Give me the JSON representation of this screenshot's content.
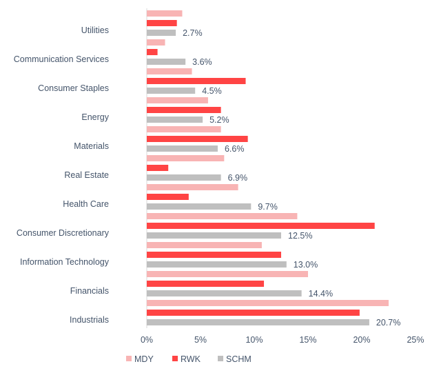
{
  "chart_data": {
    "type": "bar",
    "orientation": "horizontal",
    "title": "",
    "xlabel": "",
    "ylabel": "",
    "categories": [
      "Utilities",
      "Communication Services",
      "Consumer Staples",
      "Energy",
      "Materials",
      "Real Estate",
      "Health Care",
      "Consumer Discretionary",
      "Information Technology",
      "Financials",
      "Industrials"
    ],
    "series": [
      {
        "name": "MDY",
        "color": "#f8b4b4",
        "values": [
          3.3,
          1.7,
          4.2,
          5.7,
          6.9,
          7.2,
          8.5,
          14.0,
          10.7,
          15.0,
          22.5
        ]
      },
      {
        "name": "RWK",
        "color": "#ff4444",
        "values": [
          2.8,
          1.0,
          9.2,
          6.9,
          9.4,
          2.0,
          3.9,
          21.2,
          12.5,
          10.9,
          19.8
        ]
      },
      {
        "name": "SCHM",
        "color": "#bfbfbf",
        "values": [
          2.7,
          3.6,
          4.5,
          5.2,
          6.6,
          6.9,
          9.7,
          12.5,
          13.0,
          14.4,
          20.7
        ]
      }
    ],
    "data_labels": [
      "2.7%",
      "3.6%",
      "4.5%",
      "5.2%",
      "6.6%",
      "6.9%",
      "9.7%",
      "12.5%",
      "13.0%",
      "14.4%",
      "20.7%"
    ],
    "xlim": [
      0,
      25
    ],
    "xticks": [
      "0%",
      "5%",
      "10%",
      "15%",
      "20%",
      "25%"
    ],
    "grid": false,
    "legend": "bottom"
  }
}
